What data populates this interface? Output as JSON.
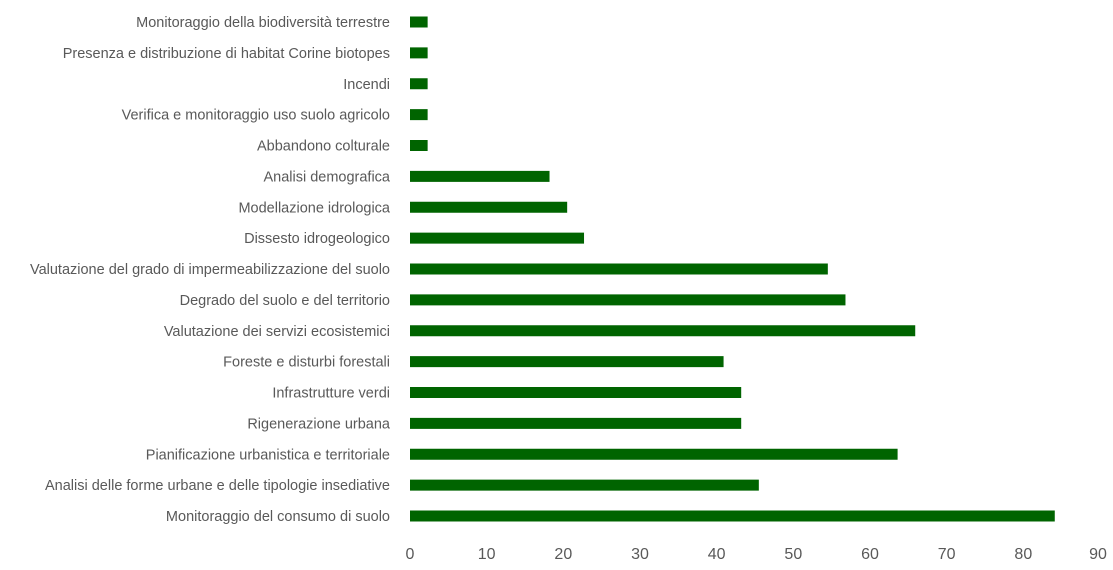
{
  "chart_data": {
    "type": "bar",
    "orientation": "horizontal",
    "title": "",
    "xlabel": "",
    "ylabel": "",
    "xlim": [
      0,
      90
    ],
    "x_ticks": [
      0,
      10,
      20,
      30,
      40,
      50,
      60,
      70,
      80,
      90
    ],
    "grid": false,
    "bar_color": "#006400",
    "label_color": "#595959",
    "categories": [
      "Monitoraggio della biodiversità terrestre",
      "Presenza e distribuzione di habitat Corine biotopes",
      "Incendi",
      "Verifica e monitoraggio uso suolo agricolo",
      "Abbandono colturale",
      "Analisi demografica",
      "Modellazione idrologica",
      "Dissesto idrogeologico",
      "Valutazione del grado di impermeabilizzazione del suolo",
      "Degrado del suolo e del territorio",
      "Valutazione dei servizi ecosistemici",
      "Foreste e disturbi forestali",
      "Infrastrutture verdi",
      "Rigenerazione urbana",
      "Pianificazione urbanistica e territoriale",
      "Analisi delle forme urbane e delle tipologie insediative",
      "Monitoraggio del consumo di suolo"
    ],
    "values": [
      2.3,
      2.3,
      2.3,
      2.3,
      2.3,
      18.2,
      20.5,
      22.7,
      54.5,
      56.8,
      65.9,
      40.9,
      43.2,
      43.2,
      63.6,
      45.5,
      84.1
    ]
  }
}
